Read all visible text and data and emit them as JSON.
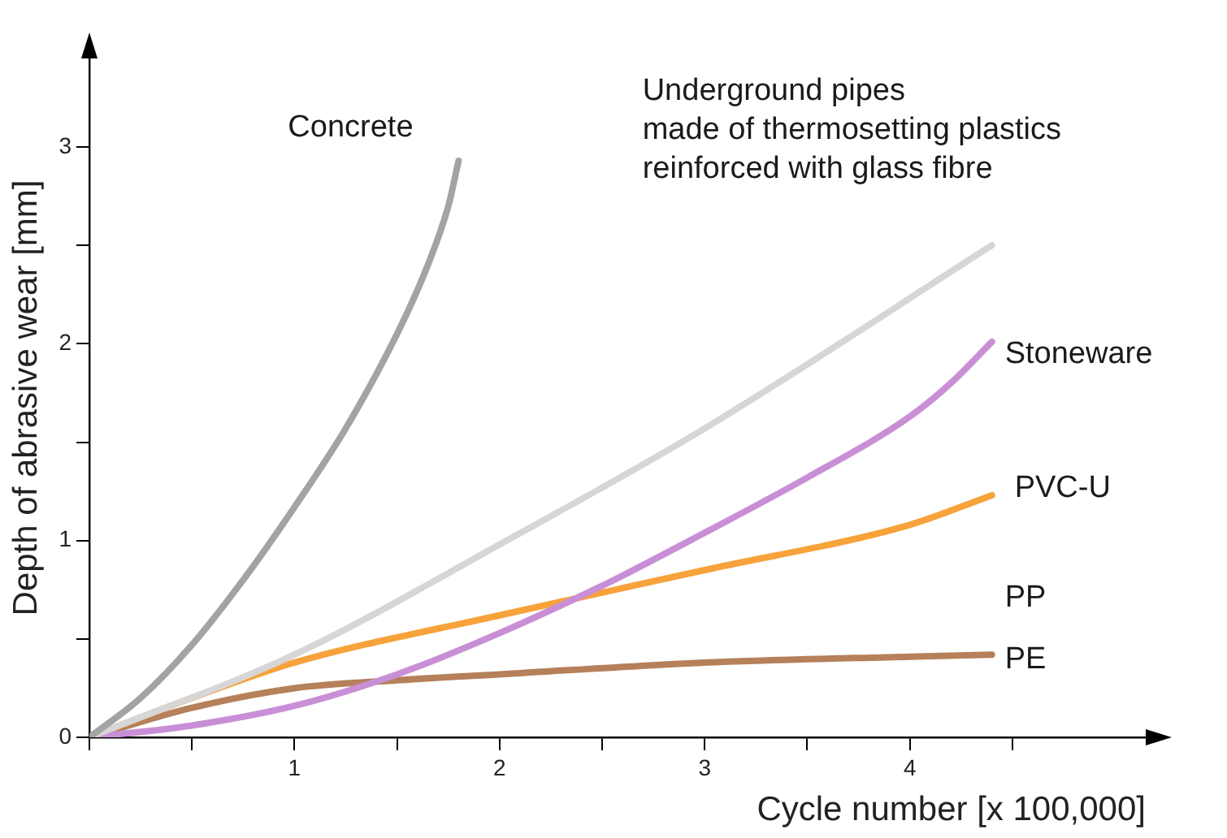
{
  "chart_data": {
    "type": "line",
    "xlabel": "Cycle number [x 100,000]",
    "ylabel": "Depth of abrasive wear [mm]",
    "xlim": [
      0,
      5.15
    ],
    "ylim": [
      0,
      3.45
    ],
    "xticks": [
      {
        "value": 0,
        "label": null
      },
      {
        "value": 0.5,
        "label": null
      },
      1,
      {
        "value": 1.5,
        "label": null
      },
      2,
      {
        "value": 2.5,
        "label": null
      },
      3,
      {
        "value": 3.5,
        "label": null
      },
      4,
      {
        "value": 4.5,
        "label": null
      }
    ],
    "yticks": [
      0,
      {
        "value": 0.5,
        "label": null
      },
      1,
      {
        "value": 1.5,
        "label": null
      },
      2,
      {
        "value": 2.5,
        "label": null
      },
      3
    ],
    "grid": false,
    "legend": false,
    "marker": "none",
    "line_style": "solid",
    "series": [
      {
        "name": "Concrete",
        "color": "#a3a3a3",
        "x": [
          0,
          0.25,
          0.5,
          0.75,
          1,
          1.25,
          1.5,
          1.65,
          1.75,
          1.8
        ],
        "values": [
          0,
          0.2,
          0.47,
          0.8,
          1.17,
          1.57,
          2.05,
          2.4,
          2.7,
          2.93
        ]
      },
      {
        "name": "Underground pipes\nmade of thermosetting plastics\nreinforced with glass fibre",
        "color": "#d6d6d6",
        "x": [
          0,
          1,
          2,
          3,
          4.4
        ],
        "values": [
          0,
          0.42,
          0.98,
          1.57,
          2.5
        ]
      },
      {
        "name": "Stoneware",
        "color": "#c98fd6",
        "x": [
          0,
          0.5,
          1,
          1.5,
          2,
          2.5,
          3,
          3.5,
          4,
          4.2,
          4.4
        ],
        "values": [
          0,
          0.06,
          0.16,
          0.32,
          0.53,
          0.77,
          1.04,
          1.32,
          1.63,
          1.8,
          2.01
        ]
      },
      {
        "name": "PVC-U",
        "color": "#f7a23a",
        "x": [
          0,
          0.5,
          1,
          2,
          3,
          4,
          4.4
        ],
        "values": [
          0,
          0.2,
          0.38,
          0.62,
          0.85,
          1.08,
          1.23
        ]
      },
      {
        "name": "PP\nPE",
        "color": "#b5805a",
        "x": [
          0,
          0.5,
          1,
          1.5,
          2,
          3,
          4,
          4.4
        ],
        "values": [
          0,
          0.15,
          0.25,
          0.29,
          0.32,
          0.38,
          0.41,
          0.42
        ]
      }
    ]
  }
}
